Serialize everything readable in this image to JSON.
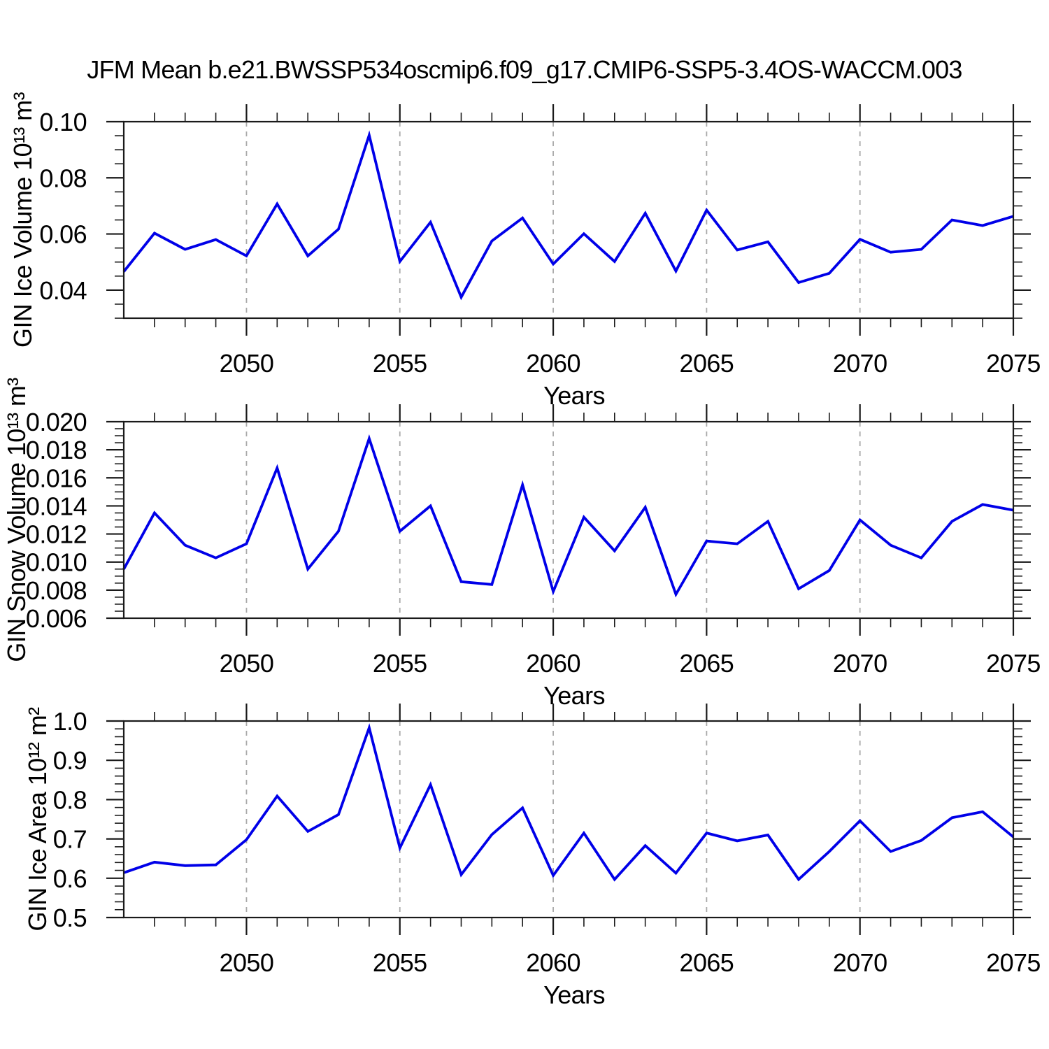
{
  "title": "JFM Mean b.e21.BWSSP534oscmip6.f09_g17.CMIP6-SSP5-3.4OS-WACCM.003",
  "style": {
    "line_color": "#0000e8",
    "grid_color": "#a9a9a9",
    "axis_color": "#1a1a1a",
    "background": "#ffffff"
  },
  "chart_data": [
    {
      "type": "line",
      "ylabel": "GIN Ice Volume 10¹³ m³",
      "xlabel": "Years",
      "x": [
        2046,
        2047,
        2048,
        2049,
        2050,
        2051,
        2052,
        2053,
        2054,
        2055,
        2056,
        2057,
        2058,
        2059,
        2060,
        2061,
        2062,
        2063,
        2064,
        2065,
        2066,
        2067,
        2068,
        2069,
        2070,
        2071,
        2072,
        2073,
        2074,
        2075
      ],
      "values": [
        0.0466,
        0.0603,
        0.0545,
        0.058,
        0.0522,
        0.0707,
        0.0522,
        0.0617,
        0.0952,
        0.0502,
        0.0642,
        0.0375,
        0.0575,
        0.0657,
        0.0493,
        0.0601,
        0.0502,
        0.0674,
        0.0468,
        0.0685,
        0.0543,
        0.0572,
        0.0427,
        0.046,
        0.0581,
        0.0535,
        0.0545,
        0.065,
        0.063,
        0.0663
      ],
      "xlim": [
        2046,
        2075
      ],
      "ylim": [
        0.03,
        0.1
      ],
      "xticks": {
        "major": [
          2050,
          2055,
          2060,
          2065,
          2070,
          2075
        ],
        "labels": [
          "2050",
          "2055",
          "2060",
          "2065",
          "2070",
          "2075"
        ],
        "minor_step": 1
      },
      "yticks": {
        "major": [
          0.04,
          0.06,
          0.08,
          0.1
        ],
        "labels": [
          "0.04",
          "0.06",
          "0.08",
          "0.10"
        ],
        "minor_step": 0.005
      },
      "grid_x": [
        2050,
        2055,
        2060,
        2065,
        2070
      ],
      "grid": "vertical-dashed"
    },
    {
      "type": "line",
      "ylabel": "GIN Snow Volume 10¹³ m³",
      "xlabel": "Years",
      "x": [
        2046,
        2047,
        2048,
        2049,
        2050,
        2051,
        2052,
        2053,
        2054,
        2055,
        2056,
        2057,
        2058,
        2059,
        2060,
        2061,
        2062,
        2063,
        2064,
        2065,
        2066,
        2067,
        2068,
        2069,
        2070,
        2071,
        2072,
        2073,
        2074,
        2075
      ],
      "values": [
        0.0095,
        0.0135,
        0.0112,
        0.0103,
        0.0113,
        0.0167,
        0.0095,
        0.0122,
        0.0188,
        0.0122,
        0.014,
        0.0086,
        0.0084,
        0.0155,
        0.0079,
        0.0132,
        0.0108,
        0.0139,
        0.0077,
        0.0115,
        0.0113,
        0.0129,
        0.0081,
        0.0094,
        0.013,
        0.0112,
        0.0103,
        0.0129,
        0.0141,
        0.0137
      ],
      "xlim": [
        2046,
        2075
      ],
      "ylim": [
        0.006,
        0.02
      ],
      "xticks": {
        "major": [
          2050,
          2055,
          2060,
          2065,
          2070,
          2075
        ],
        "labels": [
          "2050",
          "2055",
          "2060",
          "2065",
          "2070",
          "2075"
        ],
        "minor_step": 1
      },
      "yticks": {
        "major": [
          0.006,
          0.008,
          0.01,
          0.012,
          0.014,
          0.016,
          0.018,
          0.02
        ],
        "labels": [
          "0.006",
          "0.008",
          "0.010",
          "0.012",
          "0.014",
          "0.016",
          "0.018",
          "0.020"
        ],
        "minor_step": 0.0005
      },
      "grid_x": [
        2050,
        2055,
        2060,
        2065,
        2070
      ],
      "grid": "vertical-dashed"
    },
    {
      "type": "line",
      "ylabel": "GIN Ice Area 10¹² m²",
      "xlabel": "Years",
      "x": [
        2046,
        2047,
        2048,
        2049,
        2050,
        2051,
        2052,
        2053,
        2054,
        2055,
        2056,
        2057,
        2058,
        2059,
        2060,
        2061,
        2062,
        2063,
        2064,
        2065,
        2066,
        2067,
        2068,
        2069,
        2070,
        2071,
        2072,
        2073,
        2074,
        2075
      ],
      "values": [
        0.614,
        0.641,
        0.632,
        0.634,
        0.698,
        0.809,
        0.719,
        0.762,
        0.983,
        0.677,
        0.838,
        0.609,
        0.711,
        0.779,
        0.607,
        0.715,
        0.597,
        0.683,
        0.613,
        0.715,
        0.695,
        0.71,
        0.597,
        0.668,
        0.746,
        0.668,
        0.696,
        0.754,
        0.769,
        0.705
      ],
      "xlim": [
        2046,
        2075
      ],
      "ylim": [
        0.5,
        1.0
      ],
      "xticks": {
        "major": [
          2050,
          2055,
          2060,
          2065,
          2070,
          2075
        ],
        "labels": [
          "2050",
          "2055",
          "2060",
          "2065",
          "2070",
          "2075"
        ],
        "minor_step": 1
      },
      "yticks": {
        "major": [
          0.5,
          0.6,
          0.7,
          0.8,
          0.9,
          1.0
        ],
        "labels": [
          "0.5",
          "0.6",
          "0.7",
          "0.8",
          "0.9",
          "1.0"
        ],
        "minor_step": 0.02
      },
      "grid_x": [
        2050,
        2055,
        2060,
        2065,
        2070
      ],
      "grid": "vertical-dashed"
    }
  ]
}
